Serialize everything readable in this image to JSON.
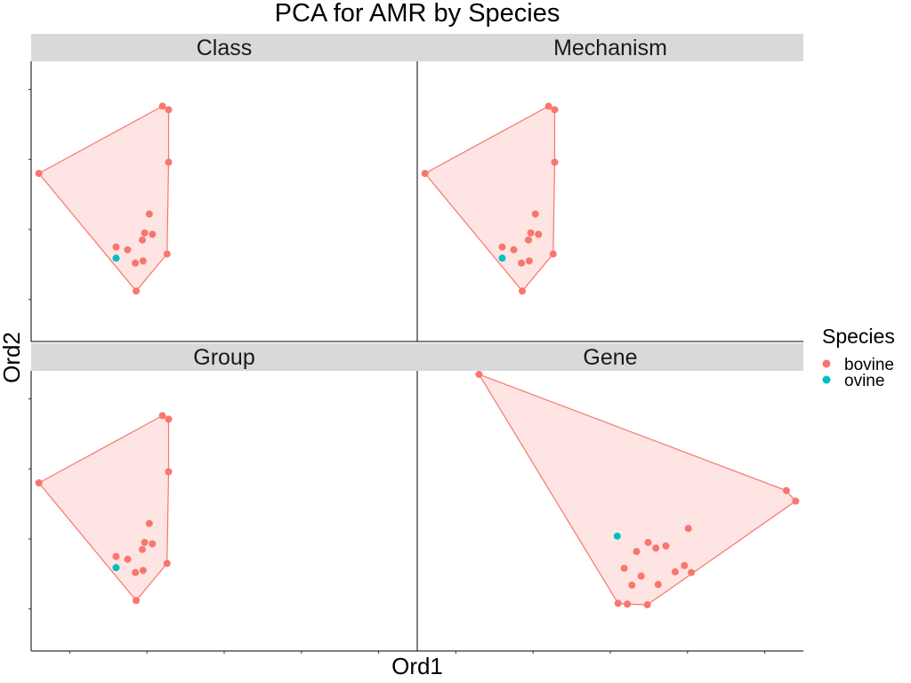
{
  "chart_data": {
    "type": "scatter",
    "title": "PCA for AMR by Species",
    "xlabel": "Ord1",
    "ylabel": "Ord2",
    "grid": false,
    "legend": {
      "title": "Species",
      "placement": "right",
      "entries": [
        {
          "name": "bovine",
          "color": "#F8766D"
        },
        {
          "name": "ovine",
          "color": "#00BFC4"
        }
      ]
    },
    "xlim": [
      -0.5,
      4.5
    ],
    "ylim": [
      -0.6,
      3.4
    ],
    "panels": [
      {
        "name": "Class",
        "points": {
          "bovine": [
            [
              -0.4,
              1.8
            ],
            [
              1.2,
              2.76
            ],
            [
              1.28,
              2.71
            ],
            [
              1.28,
              1.96
            ],
            [
              0.85,
              0.52
            ],
            [
              0.86,
              0.12
            ],
            [
              0.94,
              0.85
            ],
            [
              0.95,
              0.55
            ],
            [
              0.97,
              0.95
            ],
            [
              1.03,
              1.22
            ],
            [
              0.6,
              0.75
            ],
            [
              0.75,
              0.71
            ],
            [
              1.07,
              0.93
            ],
            [
              1.26,
              0.65
            ]
          ],
          "ovine": [
            [
              0.6,
              0.59
            ]
          ]
        }
      },
      {
        "name": "Mechanism",
        "points": {
          "bovine": [
            [
              -0.4,
              1.8
            ],
            [
              1.2,
              2.76
            ],
            [
              1.28,
              2.71
            ],
            [
              1.28,
              1.96
            ],
            [
              0.85,
              0.52
            ],
            [
              0.86,
              0.12
            ],
            [
              0.94,
              0.85
            ],
            [
              0.95,
              0.55
            ],
            [
              0.97,
              0.95
            ],
            [
              1.03,
              1.22
            ],
            [
              0.6,
              0.75
            ],
            [
              0.75,
              0.71
            ],
            [
              1.07,
              0.93
            ],
            [
              1.26,
              0.65
            ]
          ],
          "ovine": [
            [
              0.6,
              0.59
            ]
          ]
        }
      },
      {
        "name": "Group",
        "points": {
          "bovine": [
            [
              -0.4,
              1.8
            ],
            [
              1.2,
              2.76
            ],
            [
              1.28,
              2.71
            ],
            [
              1.28,
              1.96
            ],
            [
              0.85,
              0.52
            ],
            [
              0.86,
              0.12
            ],
            [
              0.94,
              0.85
            ],
            [
              0.95,
              0.55
            ],
            [
              0.97,
              0.95
            ],
            [
              1.03,
              1.22
            ],
            [
              0.6,
              0.75
            ],
            [
              0.75,
              0.71
            ],
            [
              1.07,
              0.93
            ],
            [
              1.26,
              0.65
            ]
          ],
          "ovine": [
            [
              0.6,
              0.59
            ]
          ]
        }
      },
      {
        "name": "Gene",
        "points": {
          "bovine": [
            [
              0.3,
              3.35
            ],
            [
              4.4,
              1.54
            ],
            [
              4.28,
              1.69
            ],
            [
              2.4,
              0.47
            ],
            [
              2.48,
              0.06
            ],
            [
              2.28,
              0.34
            ],
            [
              2.18,
              0.58
            ],
            [
              2.1,
              0.08
            ],
            [
              2.22,
              0.07
            ],
            [
              2.34,
              0.82
            ],
            [
              2.49,
              0.95
            ],
            [
              2.59,
              0.87
            ],
            [
              2.72,
              0.9
            ],
            [
              2.84,
              0.53
            ],
            [
              3.01,
              1.15
            ],
            [
              2.96,
              0.62
            ],
            [
              3.05,
              0.52
            ],
            [
              2.62,
              0.35
            ]
          ],
          "ovine": [
            [
              2.09,
              1.04
            ]
          ]
        }
      }
    ]
  },
  "colors": {
    "bovine": "#F8766D",
    "ovine": "#00BFC4",
    "hull_fill": "#F8766D",
    "strip": "#D9D9D9"
  }
}
